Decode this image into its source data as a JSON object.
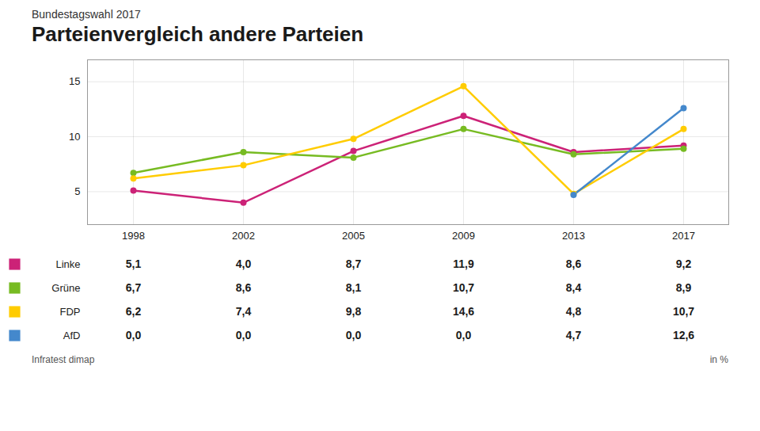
{
  "chart_data": {
    "type": "line",
    "subtitle": "Bundestagswahl 2017",
    "title": "Parteienvergleich andere Parteien",
    "source": "Infratest dimap",
    "unit": "in %",
    "categories": [
      "1998",
      "2002",
      "2005",
      "2009",
      "2013",
      "2017"
    ],
    "series": [
      {
        "name": "Linke",
        "color": "#cc2277",
        "values": [
          5.1,
          4.0,
          8.7,
          11.9,
          8.6,
          9.2
        ],
        "value_labels": [
          "5,1",
          "4,0",
          "8,7",
          "11,9",
          "8,6",
          "9,2"
        ]
      },
      {
        "name": "Grüne",
        "color": "#77bb22",
        "values": [
          6.7,
          8.6,
          8.1,
          10.7,
          8.4,
          8.9
        ],
        "value_labels": [
          "6,7",
          "8,6",
          "8,1",
          "10,7",
          "8,4",
          "8,9"
        ]
      },
      {
        "name": "FDP",
        "color": "#ffcc00",
        "values": [
          6.2,
          7.4,
          9.8,
          14.6,
          4.8,
          10.7
        ],
        "value_labels": [
          "6,2",
          "7,4",
          "9,8",
          "14,6",
          "4,8",
          "10,7"
        ]
      },
      {
        "name": "AfD",
        "color": "#4488cc",
        "values": [
          null,
          null,
          null,
          null,
          4.7,
          12.6
        ],
        "value_labels": [
          "0,0",
          "0,0",
          "0,0",
          "0,0",
          "4,7",
          "12,6"
        ]
      }
    ],
    "ylim": [
      2,
      17
    ],
    "yticks": [
      5,
      10,
      15
    ],
    "grid": true,
    "marker": "circle"
  }
}
